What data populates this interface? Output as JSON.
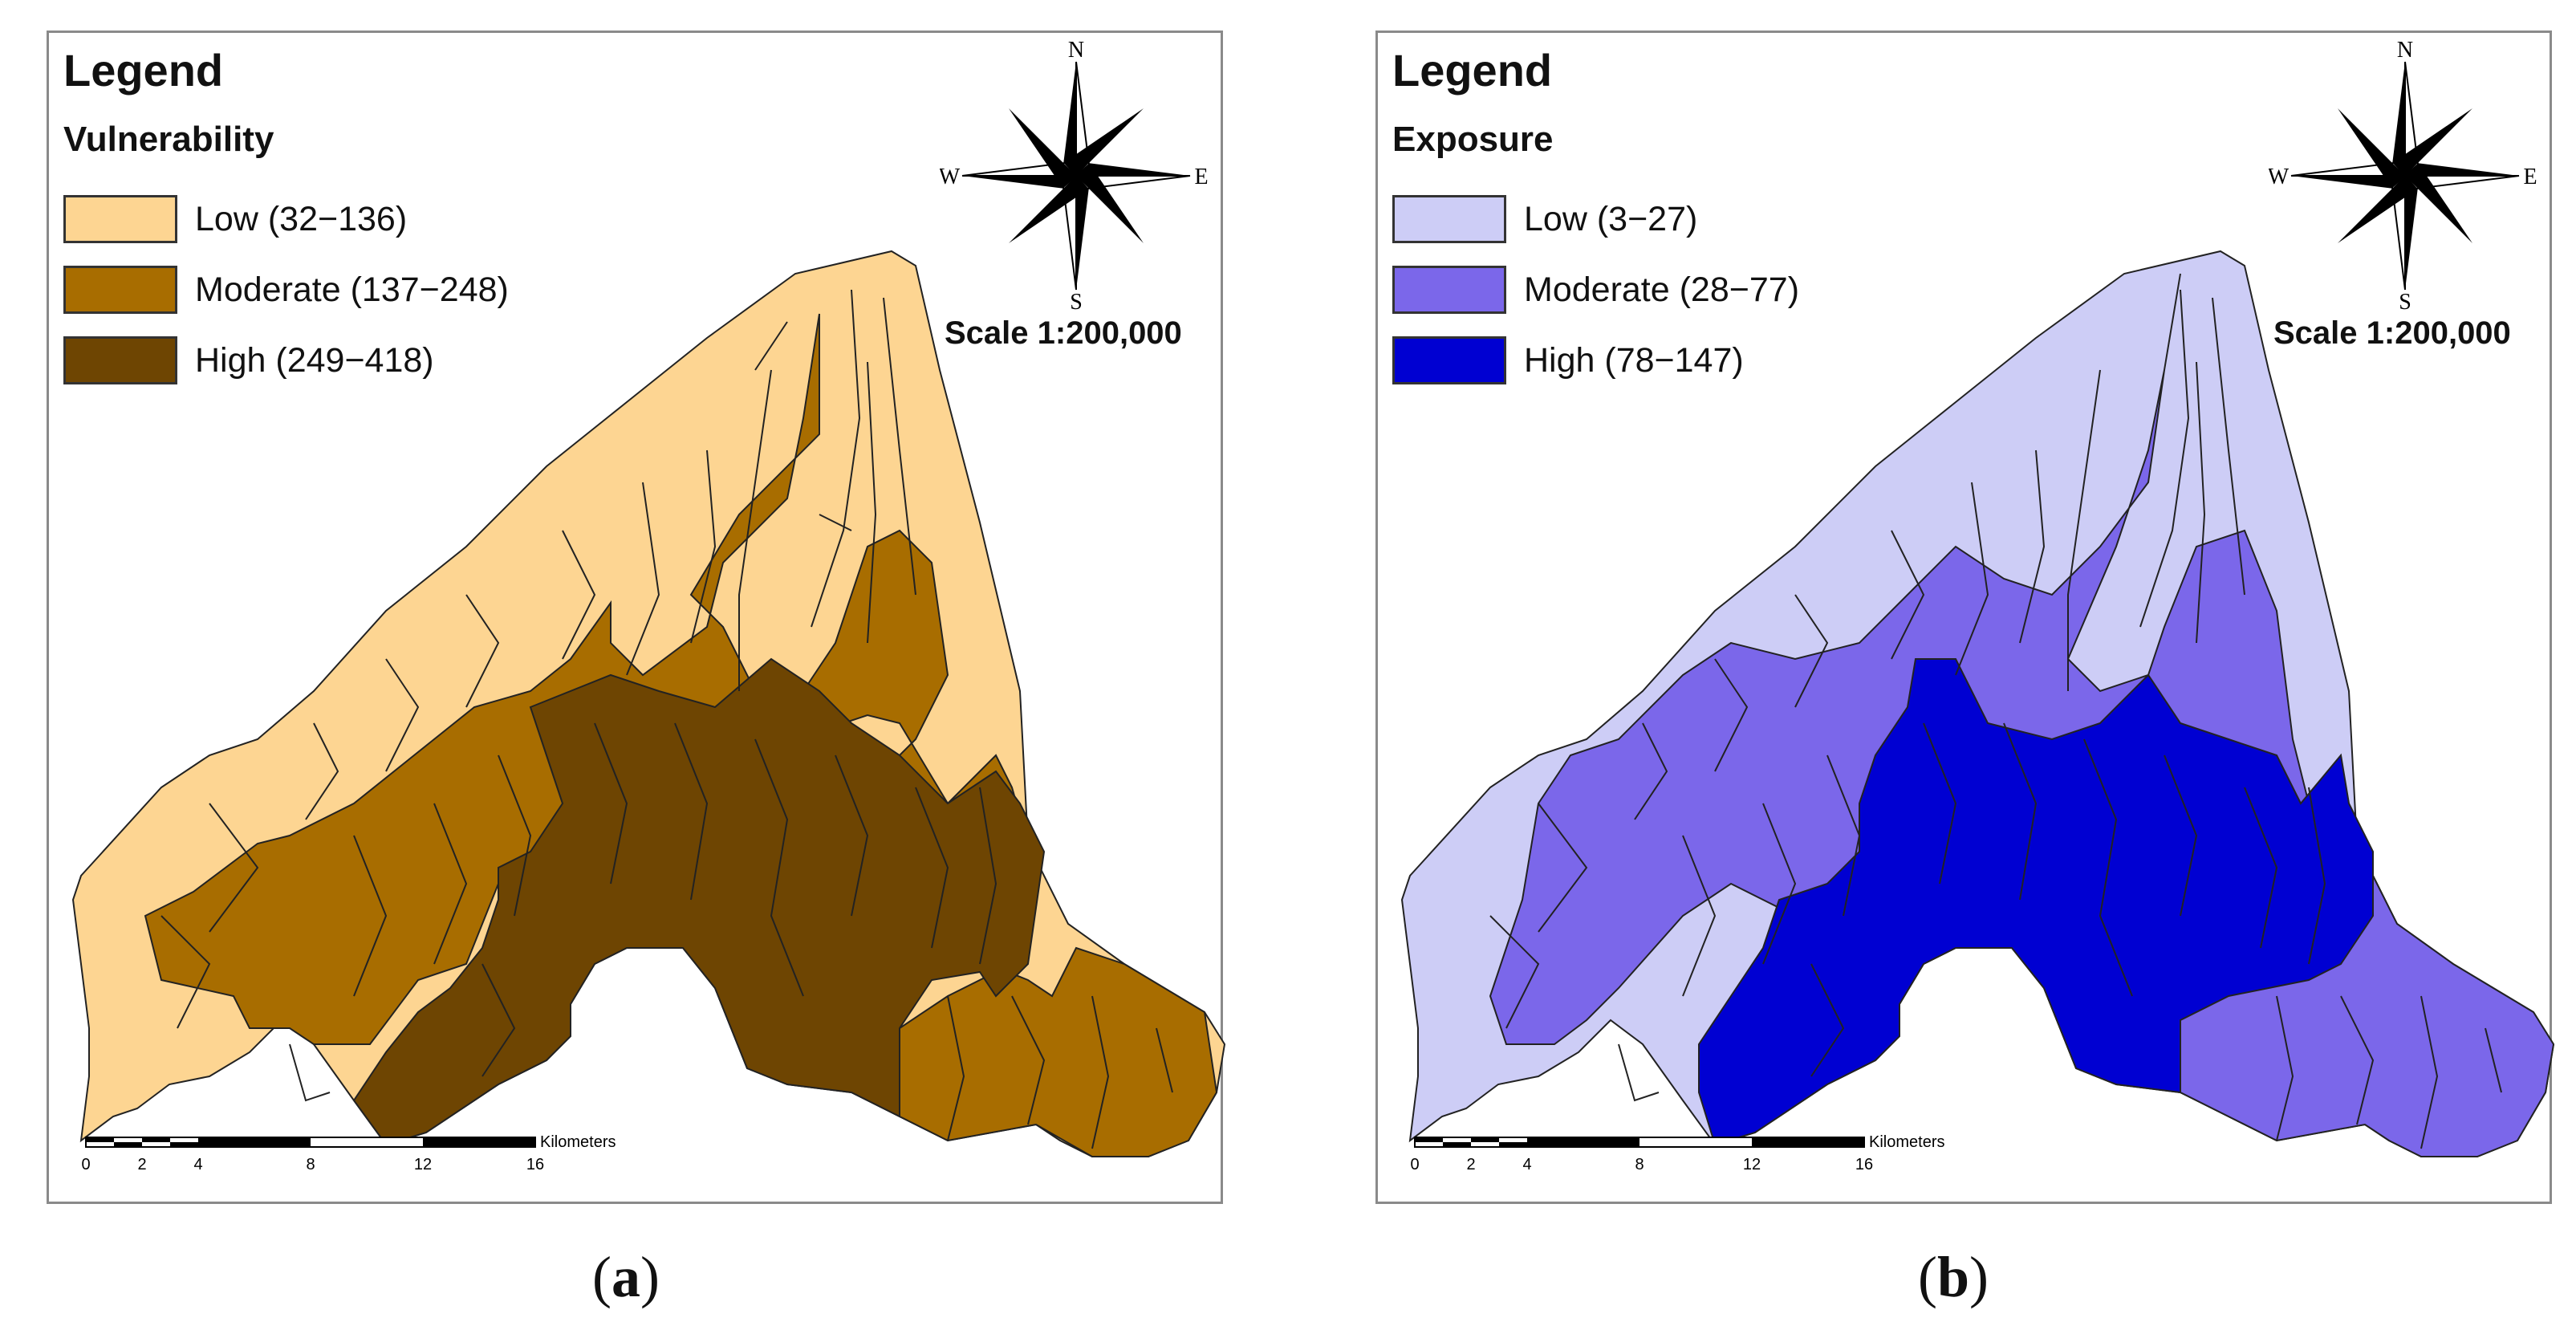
{
  "panels": [
    {
      "id": "a",
      "legend_title": "Legend",
      "layer_title": "Vulnerability",
      "classes": [
        {
          "label": "Low (32−136)",
          "color": "#fdd592"
        },
        {
          "label": "Moderate (137−248)",
          "color": "#a86d00"
        },
        {
          "label": "High (249−418)",
          "color": "#6e4502"
        }
      ],
      "scale": "Scale  1:200,000",
      "scalebar_unit": "Kilometers",
      "scalebar_ticks": [
        "0",
        "2",
        "4",
        "8",
        "12",
        "16"
      ],
      "compass": {
        "n": "N",
        "e": "E",
        "s": "S",
        "w": "W"
      },
      "caption": "a"
    },
    {
      "id": "b",
      "legend_title": "Legend",
      "layer_title": "Exposure",
      "classes": [
        {
          "label": "Low (3−27)",
          "color": "#cdcdf6"
        },
        {
          "label": "Moderate (28−77)",
          "color": "#7b67ea"
        },
        {
          "label": "High (78−147)",
          "color": "#0000d2"
        }
      ],
      "scale": "Scale  1:200,000",
      "scalebar_unit": "Kilometers",
      "scalebar_ticks": [
        "0",
        "2",
        "4",
        "8",
        "12",
        "16"
      ],
      "compass": {
        "n": "N",
        "e": "E",
        "s": "S",
        "w": "W"
      },
      "caption": "b"
    }
  ]
}
